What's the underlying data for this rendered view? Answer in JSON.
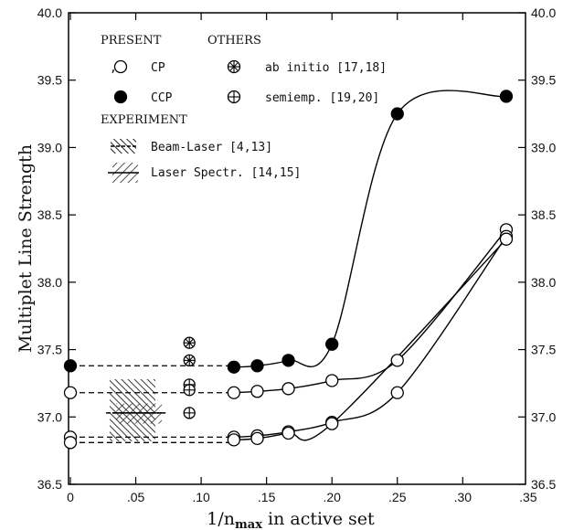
{
  "chart_data": {
    "type": "line",
    "title": "",
    "xlabel": "1/n",
    "xlabel_sub": "max",
    "xlabel_rest": " in active set",
    "ylabel": "Multiplet Line Strength",
    "xlim": [
      0,
      0.34
    ],
    "ylim": [
      36.5,
      40.0
    ],
    "x_ticks": [
      {
        "value": 0,
        "label": "0"
      },
      {
        "value": 0.05,
        "label": ".05"
      },
      {
        "value": 0.1,
        "label": ".10"
      },
      {
        "value": 0.15,
        "label": ".15"
      },
      {
        "value": 0.2,
        "label": ".20"
      },
      {
        "value": 0.25,
        "label": ".25"
      },
      {
        "value": 0.3,
        "label": ".30"
      },
      {
        "value": 0.35,
        "label": ".35"
      }
    ],
    "y_ticks_left": [
      "36.5",
      "37.0",
      "37.5",
      "38.0",
      "38.5",
      "39.0",
      "39.5",
      "40.0"
    ],
    "y_ticks_right": [
      "36.5",
      "37.0",
      "37.5",
      "38.0",
      "38.5",
      "39.0",
      "39.5",
      "40.0"
    ],
    "legend": {
      "present_header": "PRESENT",
      "others_header": "OTHERS",
      "experiment_header": "EXPERIMENT",
      "cp_prefix": ",",
      "cp": "CP",
      "ccp": "CCP",
      "ab_initio": "ab initio [17,18]",
      "semiemp": "semiemp. [19,20]",
      "beam_laser": "Beam-Laser [4,13]",
      "laser_spectr": "Laser Spectr. [14,15]"
    },
    "series": [
      {
        "name": "CCP",
        "marker": "filled-circle",
        "x": [
          0.125,
          0.1429,
          0.1667,
          0.2,
          0.25,
          0.3333
        ],
        "y": [
          37.37,
          37.38,
          37.42,
          37.54,
          39.25,
          39.38
        ],
        "extrapolated": 37.38
      },
      {
        "name": "CP",
        "marker": "open-circle",
        "x": [
          0.125,
          0.1429,
          0.1667,
          0.2,
          0.25,
          0.3333
        ],
        "y": [
          37.18,
          37.19,
          37.21,
          37.27,
          37.42,
          38.39
        ],
        "extrapolated": 37.18
      },
      {
        "name": "CP",
        "marker": "open-circle",
        "x": [
          0.125,
          0.1429,
          0.1667,
          0.2,
          0.25,
          0.3333
        ],
        "y": [
          36.85,
          36.86,
          36.89,
          36.96,
          37.18,
          38.34
        ],
        "extrapolated": 36.85
      },
      {
        "name": "CP",
        "marker": "open-circle",
        "x": [
          0.125,
          0.1429,
          0.1667,
          0.2,
          0.3333
        ],
        "y": [
          36.83,
          36.84,
          36.88,
          36.95,
          38.32
        ],
        "extrapolated": 36.81
      }
    ],
    "others": [
      {
        "name": "ab initio [17,18]",
        "marker": "circle-star",
        "x": 0.091,
        "y": [
          37.55,
          37.42
        ]
      },
      {
        "name": "semiemp. [19,20]",
        "marker": "circle-plus",
        "x": 0.091,
        "y": [
          37.24,
          37.2,
          37.03
        ]
      }
    ],
    "experiment": [
      {
        "name": "Beam-Laser [4,13]",
        "pattern": "hatch-dense",
        "x_range": [
          0.03,
          0.065
        ],
        "y_range": [
          36.82,
          37.28
        ],
        "center": {
          "x": 0.05,
          "y": 37.03
        }
      },
      {
        "name": "Laser Spectr. [14,15]",
        "pattern": "hatch-sparse",
        "x_range": [
          0.035,
          0.07
        ],
        "y_range": [
          36.95,
          37.1
        ],
        "center": {
          "x": 0.05,
          "y": 37.03
        }
      }
    ],
    "grid": false,
    "legend_position": "top-left"
  }
}
